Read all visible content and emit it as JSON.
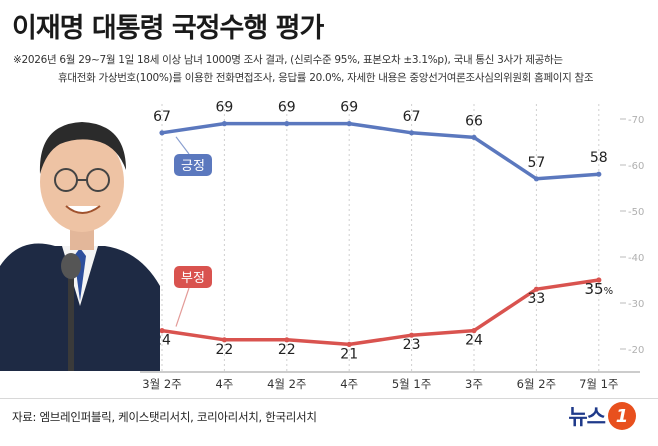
{
  "header": {
    "title": "이재명 대통령 국정수행 평가",
    "note_line1": "※2026년 6월 29~7월 1일 18세 이상 남녀 1000명 조사 결과, (신뢰수준 95%, 표본오차 ±3.1%p), 국내 통신 3사가 제공하는",
    "note_line2": "휴대전화 가상번호(100%)를 이용한 전화면접조사, 응답률 20.0%, 자세한 내용은 중앙선거여론조사심의위원회 홈페이지 참조"
  },
  "colors": {
    "positive": "#5b78be",
    "negative": "#d9534f",
    "grid": "#cfcfcf"
  },
  "chart_data": {
    "type": "line",
    "categories": [
      "3월 2주",
      "4주",
      "4월 2주",
      "4주",
      "5월 1주",
      "3주",
      "6월 2주",
      "7월 1주"
    ],
    "series": [
      {
        "name": "긍정",
        "values": [
          67,
          69,
          69,
          69,
          67,
          66,
          57,
          58
        ],
        "labels": [
          "67",
          "69",
          "69",
          "69",
          "67",
          "66",
          "57",
          "58"
        ],
        "color": "#5b78be"
      },
      {
        "name": "부정",
        "values": [
          24,
          22,
          22,
          21,
          23,
          24,
          33,
          35
        ],
        "labels": [
          "24",
          "22",
          "22",
          "21",
          "23",
          "24",
          "33",
          "35%"
        ],
        "color": "#d9534f"
      }
    ],
    "yticks": [
      "70",
      "60",
      "50",
      "40",
      "30",
      "20"
    ],
    "ylim": [
      15,
      75
    ],
    "grid": true
  },
  "footer": {
    "source": "자료: 엠브레인퍼블릭, 케이스탯리서치, 코리아리서치, 한국리서치",
    "logo_text": "뉴스",
    "logo_badge": "1"
  },
  "photo": {
    "icon": "president-portrait"
  }
}
